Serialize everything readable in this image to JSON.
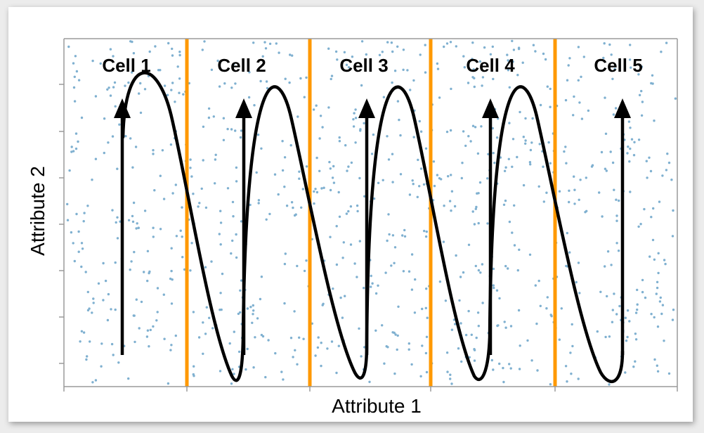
{
  "diagram": {
    "x_axis_label": "Attribute 1",
    "y_axis_label": "Attribute 2",
    "cells": [
      {
        "label": "Cell 1"
      },
      {
        "label": "Cell 2"
      },
      {
        "label": "Cell 3"
      },
      {
        "label": "Cell 4"
      },
      {
        "label": "Cell 5"
      }
    ],
    "colors": {
      "divider": "#ff9900",
      "points": "#7fb0d0",
      "curve": "#000000",
      "axis": "#9a9a9a"
    }
  }
}
